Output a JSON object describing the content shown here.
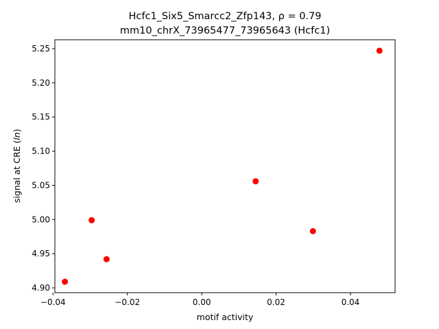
{
  "chart_data": {
    "type": "scatter",
    "title_line1": "Hcfc1_Six5_Smarcc2_Zfp143, ρ = 0.79",
    "title_line2": "mm10_chrX_73965477_73965643 (Hcfc1)",
    "xlabel": "motif activity",
    "ylabel": "signal at CRE (ln)",
    "xlim": [
      -0.0395,
      0.052
    ],
    "ylim": [
      4.893,
      5.263
    ],
    "xticks": [
      {
        "value": -0.04,
        "label": "−0.04"
      },
      {
        "value": -0.02,
        "label": "−0.02"
      },
      {
        "value": 0.0,
        "label": "0.00"
      },
      {
        "value": 0.02,
        "label": "0.02"
      },
      {
        "value": 0.04,
        "label": "0.04"
      }
    ],
    "yticks": [
      {
        "value": 4.9,
        "label": "4.90"
      },
      {
        "value": 4.95,
        "label": "4.95"
      },
      {
        "value": 5.0,
        "label": "5.00"
      },
      {
        "value": 5.05,
        "label": "5.05"
      },
      {
        "value": 5.1,
        "label": "5.10"
      },
      {
        "value": 5.15,
        "label": "5.15"
      },
      {
        "value": 5.2,
        "label": "5.20"
      },
      {
        "value": 5.25,
        "label": "5.25"
      }
    ],
    "point_color": "#ff0000",
    "grid": false,
    "points": [
      {
        "x": -0.0368,
        "y": 4.909
      },
      {
        "x": -0.0296,
        "y": 4.999
      },
      {
        "x": -0.0256,
        "y": 4.942
      },
      {
        "x": 0.0145,
        "y": 5.056
      },
      {
        "x": 0.0299,
        "y": 4.983
      },
      {
        "x": 0.0478,
        "y": 5.247
      }
    ]
  }
}
